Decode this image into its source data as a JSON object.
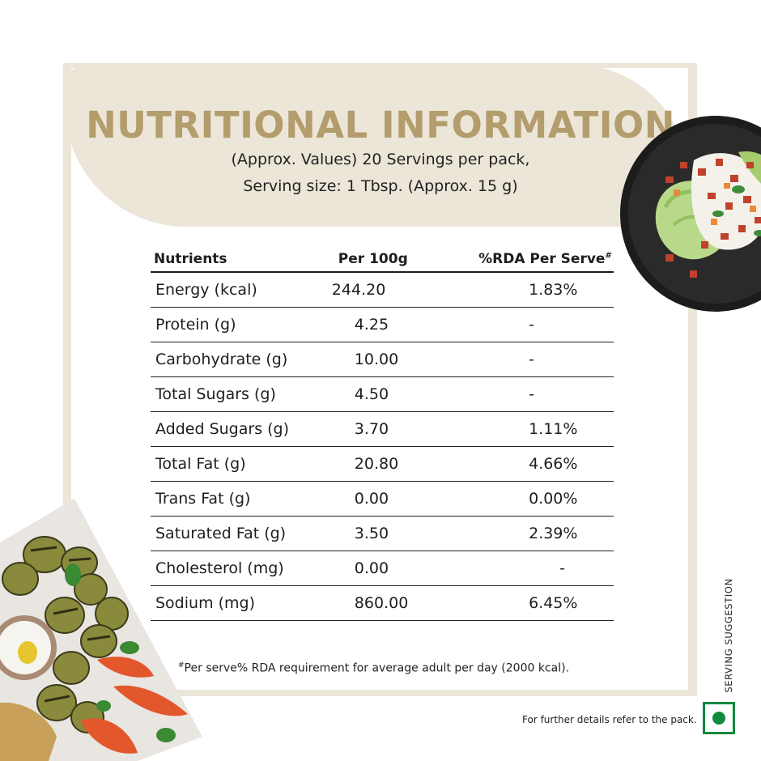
{
  "title": "NUTRITIONAL INFORMATION",
  "subtitle_line1": "(Approx. Values)  20 Servings per pack,",
  "subtitle_line2": "Serving size: 1 Tbsp. (Approx. 15 g)",
  "table": {
    "headers": [
      "Nutrients",
      "Per 100g",
      "%RDA Per Serve",
      "#"
    ],
    "rows": [
      {
        "nutrient": "Energy (kcal)",
        "per100g": "244.20",
        "rda": "1.83%"
      },
      {
        "nutrient": "Protein (g)",
        "per100g": "4.25",
        "rda": "-"
      },
      {
        "nutrient": "Carbohydrate (g)",
        "per100g": "10.00",
        "rda": "-"
      },
      {
        "nutrient": "Total Sugars (g)",
        "per100g": "4.50",
        "rda": "-"
      },
      {
        "nutrient": "Added Sugars (g)",
        "per100g": "3.70",
        "rda": "1.11%"
      },
      {
        "nutrient": "Total Fat (g)",
        "per100g": "20.80",
        "rda": "4.66%"
      },
      {
        "nutrient": "Trans Fat (g)",
        "per100g": "0.00",
        "rda": "0.00%"
      },
      {
        "nutrient": "Saturated Fat (g)",
        "per100g": "3.50",
        "rda": "2.39%"
      },
      {
        "nutrient": "Cholesterol (mg)",
        "per100g": "0.00",
        "rda": "-"
      },
      {
        "nutrient": "Sodium (mg)",
        "per100g": "860.00",
        "rda": "6.45%"
      }
    ]
  },
  "footnote_mark": "#",
  "footnote": "Per serve% RDA requirement for average adult per day (2000 kcal).",
  "serving_suggestion": "SERVING SUGGESTION",
  "further_details": "For further details refer to the pack.",
  "colors": {
    "gold": "#b39d6d",
    "beige": "#ece6d8",
    "veg_green": "#0f8a3e"
  },
  "icons": {
    "veg_mark": "veg-symbol-icon"
  }
}
